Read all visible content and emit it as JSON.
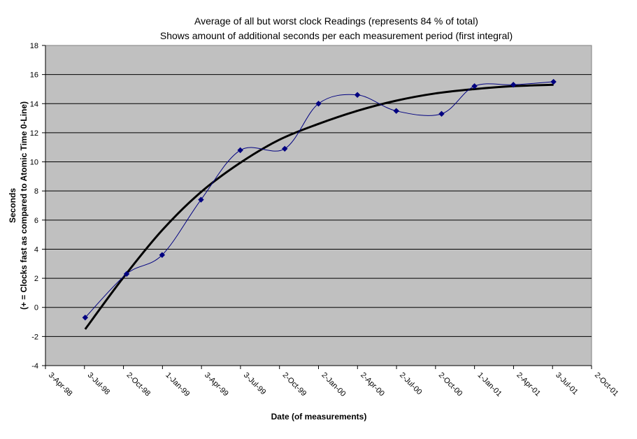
{
  "chart_data": {
    "type": "line",
    "title": "Average of all but worst clock Readings (represents 84 % of total)",
    "subtitle": "Shows amount of additional seconds per each measurement period (first integral)",
    "xlabel": "Date (of measurements)",
    "ylabel": "Seconds",
    "ylabel2": "(+ = Clocks fast as compared to Atomic Time 0-Line)",
    "xlim": [
      "1998-04-03",
      "2001-10-02"
    ],
    "ylim": [
      -4,
      18
    ],
    "x_tick_labels": [
      "3-Apr-98",
      "3-Jul-98",
      "2-Oct-98",
      "1-Jan-99",
      "3-Apr-99",
      "3-Jul-99",
      "2-Oct-99",
      "2-Jan-00",
      "2-Apr-00",
      "2-Jul-00",
      "2-Oct-00",
      "1-Jan-01",
      "2-Apr-01",
      "3-Jul-01",
      "2-Oct-01"
    ],
    "y_tick_labels": [
      "-4",
      "-2",
      "0",
      "2",
      "4",
      "6",
      "8",
      "10",
      "12",
      "14",
      "16",
      "18"
    ],
    "grid": true,
    "legend": "none",
    "colors": {
      "plot_background": "#c0c0c0",
      "series": "#000080",
      "trend": "#000000"
    },
    "series": [
      {
        "x": [
          "1998-07-05",
          "1998-10-10",
          "1999-01-01",
          "1999-04-02",
          "1999-07-03",
          "1999-10-15",
          "2000-01-02",
          "2000-04-02",
          "2000-07-02",
          "2000-10-16",
          "2001-01-01",
          "2001-04-02",
          "2001-07-05"
        ],
        "y": [
          -0.7,
          2.3,
          3.6,
          7.4,
          10.8,
          10.9,
          14.0,
          14.6,
          13.5,
          13.3,
          15.2,
          15.3,
          15.5
        ],
        "smooth": true,
        "marker": "diamond"
      },
      {
        "type": "trendline",
        "x": [
          "1998-07-05",
          "1998-10-01",
          "1999-01-01",
          "1999-04-01",
          "1999-07-01",
          "1999-10-01",
          "2000-01-01",
          "2000-04-01",
          "2000-07-01",
          "2000-10-01",
          "2001-01-01",
          "2001-04-01",
          "2001-07-05"
        ],
        "y": [
          -1.5,
          2.0,
          5.3,
          7.9,
          9.9,
          11.5,
          12.6,
          13.5,
          14.2,
          14.7,
          15.0,
          15.2,
          15.3
        ]
      }
    ]
  }
}
